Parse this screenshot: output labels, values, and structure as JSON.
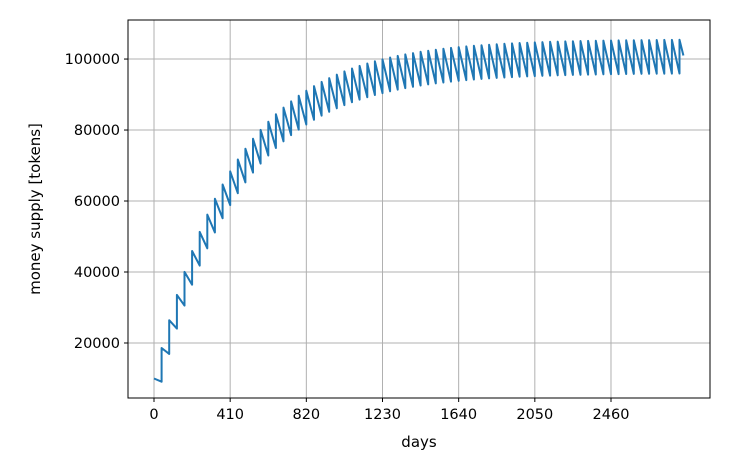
{
  "chart_data": {
    "type": "line",
    "title": "",
    "xlabel": "days",
    "ylabel": "money supply [tokens]",
    "xlim": [
      -140,
      2993
    ],
    "ylim": [
      4500,
      111000
    ],
    "xticks": [
      0,
      410,
      820,
      1230,
      1640,
      2050,
      2460
    ],
    "yticks": [
      20000,
      40000,
      60000,
      80000,
      100000
    ],
    "grid": true,
    "line_color": "#1f77b4",
    "series": [
      {
        "x": [
          0,
          41,
          41,
          82,
          82,
          123,
          123,
          164,
          164,
          205,
          205,
          246,
          246,
          287,
          287,
          328,
          328,
          369,
          369,
          410,
          410,
          451,
          451,
          492,
          492,
          533,
          533,
          574,
          574,
          615,
          615,
          656,
          656,
          697,
          697,
          738,
          738,
          779,
          779,
          820,
          820,
          861,
          861,
          902,
          902,
          943,
          943,
          984,
          984,
          1025,
          1025,
          1066,
          1066,
          1107,
          1107,
          1148,
          1148,
          1189,
          1189,
          1230,
          1230,
          1271,
          1271,
          1312,
          1312,
          1353,
          1353,
          1394,
          1394,
          1435,
          1435,
          1476,
          1476,
          1517,
          1517,
          1558,
          1558,
          1599,
          1599,
          1640,
          1640,
          1681,
          1681,
          1722,
          1722,
          1763,
          1763,
          1804,
          1804,
          1845,
          1845,
          1886,
          1886,
          1927,
          1927,
          1968,
          1968,
          2009,
          2009,
          2050,
          2050,
          2091,
          2091,
          2132,
          2132,
          2173,
          2173,
          2214,
          2214,
          2255,
          2255,
          2296,
          2296,
          2337,
          2337,
          2378,
          2378,
          2419,
          2419,
          2460,
          2460,
          2501,
          2501,
          2542,
          2542,
          2583,
          2583,
          2624,
          2624,
          2665,
          2665,
          2706,
          2706,
          2747,
          2747,
          2788,
          2788,
          2829,
          2829,
          2850
        ],
        "y": [
          10000,
          9100,
          18600,
          16926,
          26426,
          24048,
          33548,
          30529,
          40029,
          36426,
          45926,
          41793,
          51293,
          46677,
          56177,
          51121,
          60621,
          55165,
          64665,
          58845,
          68345,
          62194,
          71694,
          65242,
          74742,
          68015,
          77515,
          70539,
          80039,
          72835,
          82335,
          74925,
          84425,
          76827,
          86327,
          78558,
          88058,
          80133,
          89633,
          81566,
          91066,
          82870,
          92370,
          84057,
          93557,
          85137,
          94637,
          86120,
          95620,
          87014,
          96514,
          87828,
          97328,
          88568,
          98068,
          89242,
          98742,
          89855,
          99355,
          90413,
          99913,
          90921,
          100421,
          91383,
          100883,
          91804,
          101304,
          92186,
          101686,
          92535,
          102035,
          92852,
          102352,
          93140,
          102640,
          93402,
          102902,
          93641,
          103141,
          93859,
          103359,
          94056,
          103556,
          94236,
          103736,
          94400,
          103900,
          94549,
          104049,
          94685,
          104185,
          94808,
          104308,
          94920,
          104420,
          95023,
          104523,
          95116,
          104616,
          95200,
          104700,
          95277,
          104777,
          95347,
          104847,
          95411,
          104911,
          95469,
          104969,
          95522,
          105022,
          95570,
          105070,
          95614,
          105114,
          95654,
          105154,
          95690,
          105190,
          95723,
          105223,
          95753,
          105253,
          95780,
          105280,
          95805,
          105305,
          95828,
          105328,
          95848,
          105348,
          95867,
          105367,
          95884,
          105384,
          95899,
          105399,
          95913,
          105413,
          101000
        ]
      }
    ]
  }
}
